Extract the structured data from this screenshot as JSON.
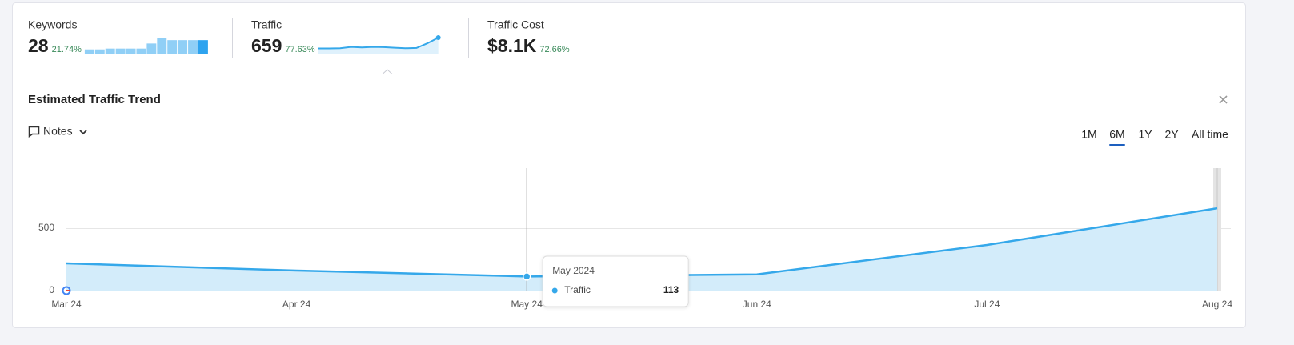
{
  "metrics": [
    {
      "label": "Keywords",
      "value": "28",
      "change": "21.74%",
      "sparkline": [
        5,
        5,
        6,
        6,
        6,
        6,
        12,
        19,
        16,
        16,
        16,
        16
      ]
    },
    {
      "label": "Traffic",
      "value": "659",
      "change": "77.63%",
      "sparkline": [
        20,
        20,
        21,
        26,
        24,
        26,
        25,
        23,
        21,
        22,
        40,
        62
      ]
    },
    {
      "label": "Traffic Cost",
      "value": "$8.1K",
      "change": "72.66%"
    }
  ],
  "panel": {
    "title": "Estimated Traffic Trend",
    "notes": "Notes",
    "ranges": [
      "1M",
      "6M",
      "1Y",
      "2Y",
      "All time"
    ],
    "active_range": "6M"
  },
  "chart_data": {
    "type": "line",
    "categories": [
      "Mar 24",
      "Apr 24",
      "May 24",
      "Jun 24",
      "Jul 24",
      "Aug 24"
    ],
    "series": [
      {
        "name": "Traffic",
        "color": "#35a8ea",
        "values": [
          218,
          160,
          113,
          130,
          365,
          659
        ]
      }
    ],
    "ylim": [
      0,
      980
    ],
    "yticks": [
      0,
      500
    ],
    "grid": true,
    "tooltip": {
      "title": "May 2024"
    }
  }
}
